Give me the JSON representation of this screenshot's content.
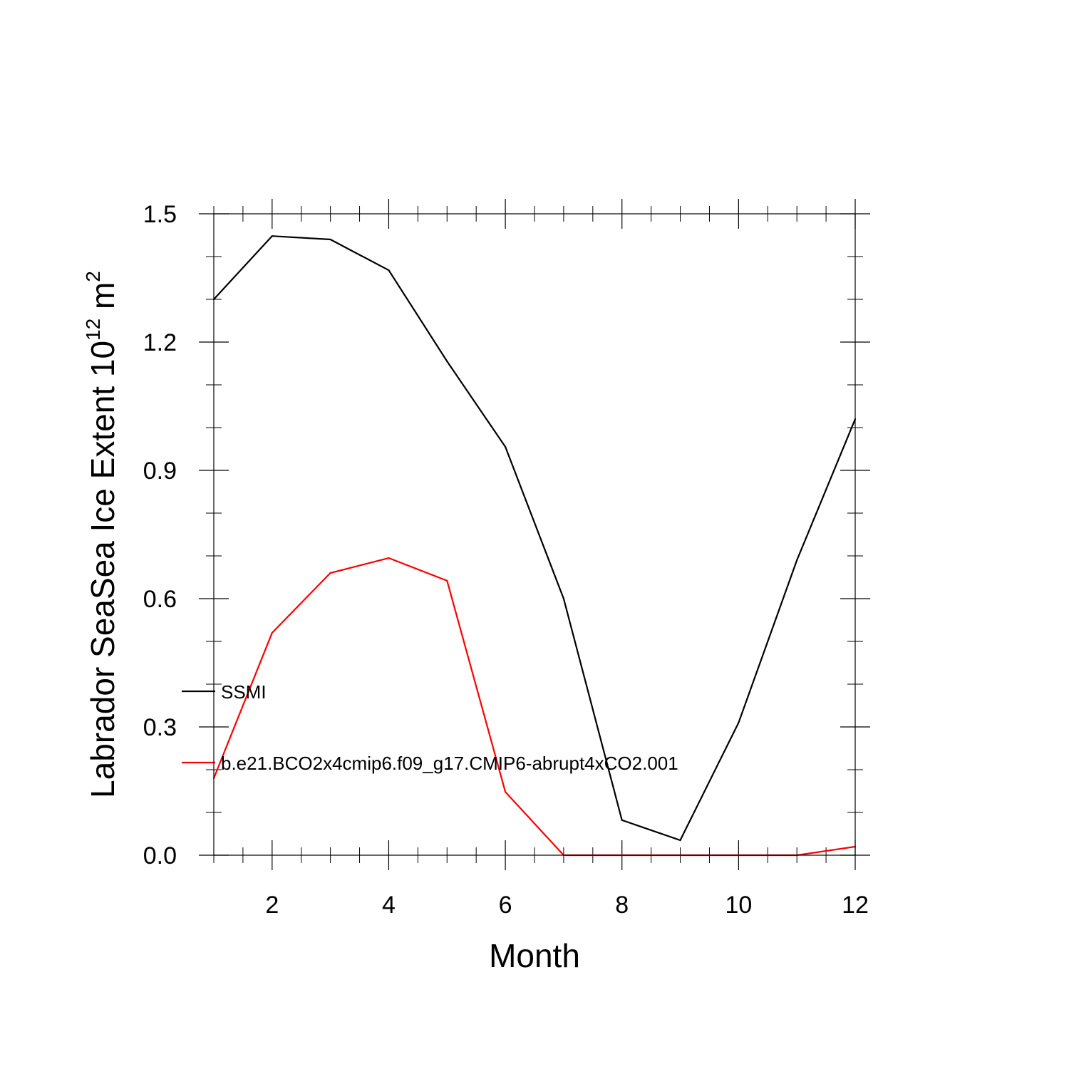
{
  "chart_data": {
    "type": "line",
    "title": "",
    "xlabel": "Month",
    "ylabel": "Labrador SeaSea Ice Extent 10",
    "ylabel_sup": "12",
    "ylabel_unit": " m",
    "ylabel_unit_sup": "2",
    "xlim": [
      1,
      12
    ],
    "ylim": [
      0.0,
      1.5
    ],
    "x_major_ticks": [
      2,
      4,
      6,
      8,
      10,
      12
    ],
    "x_major_tick_labels": [
      "2",
      "4",
      "6",
      "8",
      "10",
      "12"
    ],
    "x_minor_step": 0.5,
    "y_major_ticks": [
      0.0,
      0.3,
      0.6,
      0.9,
      1.2,
      1.5
    ],
    "y_major_tick_labels": [
      "0.0",
      "0.3",
      "0.6",
      "0.9",
      "1.2",
      "1.5"
    ],
    "y_minor_step": 0.1,
    "grid": false,
    "legend_position": "left, inside plot",
    "x": [
      1,
      2,
      3,
      4,
      5,
      6,
      7,
      8,
      9,
      10,
      11,
      12
    ],
    "series": [
      {
        "name": "SSMI",
        "color": "#000000",
        "values": [
          1.3,
          1.448,
          1.44,
          1.368,
          1.155,
          0.955,
          0.6,
          0.082,
          0.035,
          0.31,
          0.69,
          1.02
        ]
      },
      {
        "name": "b.e21.BCO2x4cmip6.f09_g17.CMIP6-abrupt4xCO2.001",
        "color": "#ff0000",
        "values": [
          0.18,
          0.52,
          0.66,
          0.695,
          0.642,
          0.148,
          0.0,
          0.0,
          0.0,
          0.0,
          0.0,
          0.02
        ]
      }
    ]
  }
}
